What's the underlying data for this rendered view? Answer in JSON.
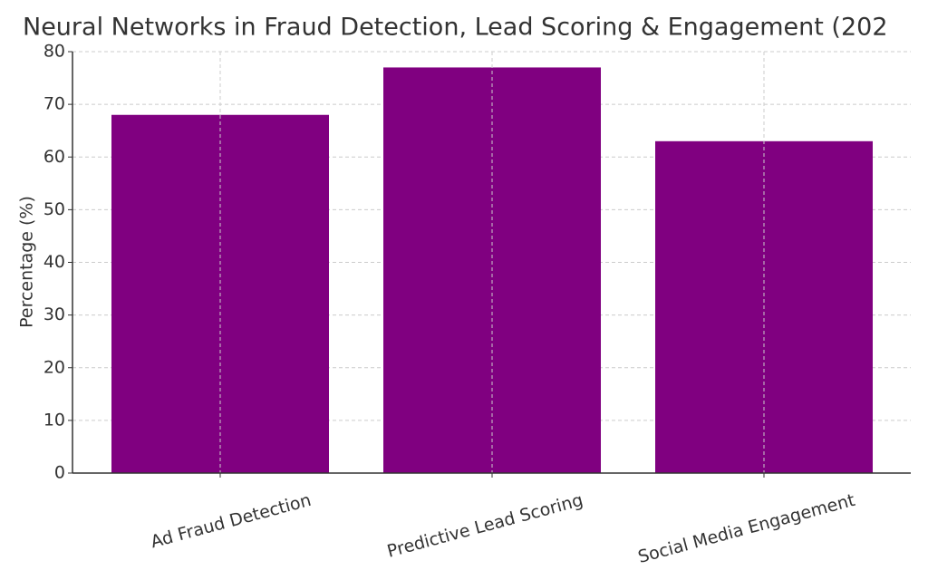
{
  "chart_data": {
    "type": "bar",
    "title": "Neural Networks in Fraud Detection, Lead Scoring & Engagement (202",
    "y_label": "Percentage (%)",
    "categories": [
      "Ad Fraud Detection",
      "Predictive Lead Scoring",
      "Social Media Engagement"
    ],
    "values": [
      68,
      77,
      63
    ],
    "color": "#800080",
    "ylim": [
      0,
      80
    ],
    "yticks": [
      0,
      10,
      20,
      30,
      40,
      50,
      60,
      70,
      80
    ],
    "grid": true
  }
}
